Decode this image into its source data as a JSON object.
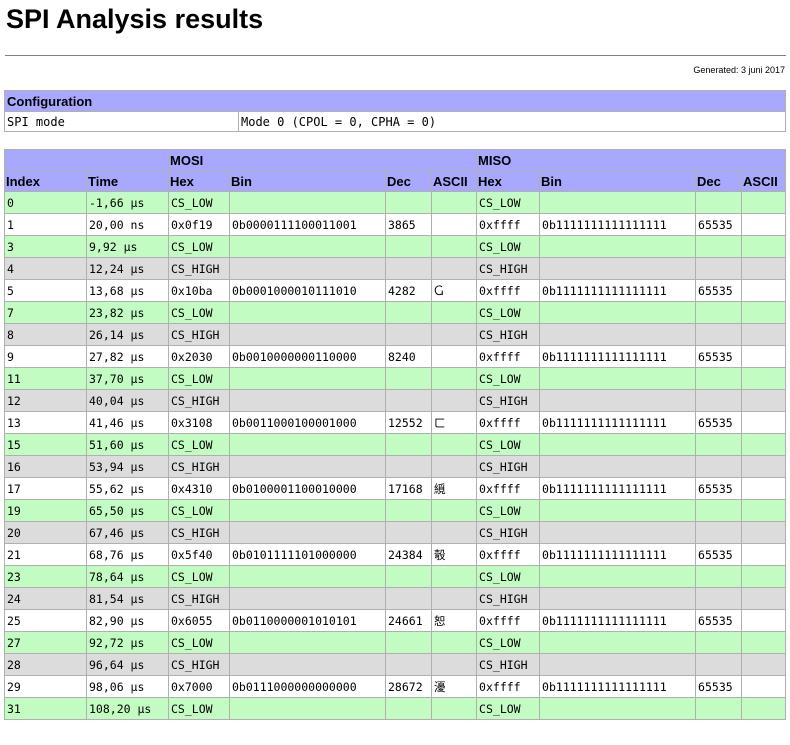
{
  "page": {
    "title": "SPI Analysis results",
    "generated": "Generated: 3 juni 2017"
  },
  "configuration": {
    "header": "Configuration",
    "rows": [
      {
        "label": "SPI mode",
        "value": "Mode 0 (CPOL = 0, CPHA = 0)"
      }
    ]
  },
  "results": {
    "group_headers": {
      "mosi": "MOSI",
      "miso": "MISO"
    },
    "columns": [
      "Index",
      "Time",
      "Hex",
      "Bin",
      "Dec",
      "ASCII",
      "Hex",
      "Bin",
      "Dec",
      "ASCII"
    ],
    "rows": [
      {
        "kind": "low",
        "index": "0",
        "time": "-1,66 µs",
        "mosi": {
          "hex": "CS_LOW",
          "bin": "",
          "dec": "",
          "ascii": ""
        },
        "miso": {
          "hex": "CS_LOW",
          "bin": "",
          "dec": "",
          "ascii": ""
        }
      },
      {
        "kind": "xfer",
        "index": "1",
        "time": "20,00 ns",
        "mosi": {
          "hex": "0x0f19",
          "bin": "0b0000111100011001",
          "dec": "3865",
          "ascii": ""
        },
        "miso": {
          "hex": "0xffff",
          "bin": "0b1111111111111111",
          "dec": "65535",
          "ascii": ""
        }
      },
      {
        "kind": "low",
        "index": "3",
        "time": "9,92 µs",
        "mosi": {
          "hex": "CS_LOW",
          "bin": "",
          "dec": "",
          "ascii": ""
        },
        "miso": {
          "hex": "CS_LOW",
          "bin": "",
          "dec": "",
          "ascii": ""
        }
      },
      {
        "kind": "high",
        "index": "4",
        "time": "12,24 µs",
        "mosi": {
          "hex": "CS_HIGH",
          "bin": "",
          "dec": "",
          "ascii": ""
        },
        "miso": {
          "hex": "CS_HIGH",
          "bin": "",
          "dec": "",
          "ascii": ""
        }
      },
      {
        "kind": "xfer",
        "index": "5",
        "time": "13,68 µs",
        "mosi": {
          "hex": "0x10ba",
          "bin": "0b0001000010111010",
          "dec": "4282",
          "ascii": "Ⴚ"
        },
        "miso": {
          "hex": "0xffff",
          "bin": "0b1111111111111111",
          "dec": "65535",
          "ascii": ""
        }
      },
      {
        "kind": "low",
        "index": "7",
        "time": "23,82 µs",
        "mosi": {
          "hex": "CS_LOW",
          "bin": "",
          "dec": "",
          "ascii": ""
        },
        "miso": {
          "hex": "CS_LOW",
          "bin": "",
          "dec": "",
          "ascii": ""
        }
      },
      {
        "kind": "high",
        "index": "8",
        "time": "26,14 µs",
        "mosi": {
          "hex": "CS_HIGH",
          "bin": "",
          "dec": "",
          "ascii": ""
        },
        "miso": {
          "hex": "CS_HIGH",
          "bin": "",
          "dec": "",
          "ascii": ""
        }
      },
      {
        "kind": "xfer",
        "index": "9",
        "time": "27,82 µs",
        "mosi": {
          "hex": "0x2030",
          "bin": "0b0010000000110000",
          "dec": "8240",
          "ascii": ""
        },
        "miso": {
          "hex": "0xffff",
          "bin": "0b1111111111111111",
          "dec": "65535",
          "ascii": ""
        }
      },
      {
        "kind": "low",
        "index": "11",
        "time": "37,70 µs",
        "mosi": {
          "hex": "CS_LOW",
          "bin": "",
          "dec": "",
          "ascii": ""
        },
        "miso": {
          "hex": "CS_LOW",
          "bin": "",
          "dec": "",
          "ascii": ""
        }
      },
      {
        "kind": "high",
        "index": "12",
        "time": "40,04 µs",
        "mosi": {
          "hex": "CS_HIGH",
          "bin": "",
          "dec": "",
          "ascii": ""
        },
        "miso": {
          "hex": "CS_HIGH",
          "bin": "",
          "dec": "",
          "ascii": ""
        }
      },
      {
        "kind": "xfer",
        "index": "13",
        "time": "41,46 µs",
        "mosi": {
          "hex": "0x3108",
          "bin": "0b0011000100001000",
          "dec": "12552",
          "ascii": "ㄈ"
        },
        "miso": {
          "hex": "0xffff",
          "bin": "0b1111111111111111",
          "dec": "65535",
          "ascii": ""
        }
      },
      {
        "kind": "low",
        "index": "15",
        "time": "51,60 µs",
        "mosi": {
          "hex": "CS_LOW",
          "bin": "",
          "dec": "",
          "ascii": ""
        },
        "miso": {
          "hex": "CS_LOW",
          "bin": "",
          "dec": "",
          "ascii": ""
        }
      },
      {
        "kind": "high",
        "index": "16",
        "time": "53,94 µs",
        "mosi": {
          "hex": "CS_HIGH",
          "bin": "",
          "dec": "",
          "ascii": ""
        },
        "miso": {
          "hex": "CS_HIGH",
          "bin": "",
          "dec": "",
          "ascii": ""
        }
      },
      {
        "kind": "xfer",
        "index": "17",
        "time": "55,62 µs",
        "mosi": {
          "hex": "0x4310",
          "bin": "0b0100001100010000",
          "dec": "17168",
          "ascii": "䌐"
        },
        "miso": {
          "hex": "0xffff",
          "bin": "0b1111111111111111",
          "dec": "65535",
          "ascii": ""
        }
      },
      {
        "kind": "low",
        "index": "19",
        "time": "65,50 µs",
        "mosi": {
          "hex": "CS_LOW",
          "bin": "",
          "dec": "",
          "ascii": ""
        },
        "miso": {
          "hex": "CS_LOW",
          "bin": "",
          "dec": "",
          "ascii": ""
        }
      },
      {
        "kind": "high",
        "index": "20",
        "time": "67,46 µs",
        "mosi": {
          "hex": "CS_HIGH",
          "bin": "",
          "dec": "",
          "ascii": ""
        },
        "miso": {
          "hex": "CS_HIGH",
          "bin": "",
          "dec": "",
          "ascii": ""
        }
      },
      {
        "kind": "xfer",
        "index": "21",
        "time": "68,76 µs",
        "mosi": {
          "hex": "0x5f40",
          "bin": "0b0101111101000000",
          "dec": "24384",
          "ascii": "彀"
        },
        "miso": {
          "hex": "0xffff",
          "bin": "0b1111111111111111",
          "dec": "65535",
          "ascii": ""
        }
      },
      {
        "kind": "low",
        "index": "23",
        "time": "78,64 µs",
        "mosi": {
          "hex": "CS_LOW",
          "bin": "",
          "dec": "",
          "ascii": ""
        },
        "miso": {
          "hex": "CS_LOW",
          "bin": "",
          "dec": "",
          "ascii": ""
        }
      },
      {
        "kind": "high",
        "index": "24",
        "time": "81,54 µs",
        "mosi": {
          "hex": "CS_HIGH",
          "bin": "",
          "dec": "",
          "ascii": ""
        },
        "miso": {
          "hex": "CS_HIGH",
          "bin": "",
          "dec": "",
          "ascii": ""
        }
      },
      {
        "kind": "xfer",
        "index": "25",
        "time": "82,90 µs",
        "mosi": {
          "hex": "0x6055",
          "bin": "0b0110000001010101",
          "dec": "24661",
          "ascii": "恕"
        },
        "miso": {
          "hex": "0xffff",
          "bin": "0b1111111111111111",
          "dec": "65535",
          "ascii": ""
        }
      },
      {
        "kind": "low",
        "index": "27",
        "time": "92,72 µs",
        "mosi": {
          "hex": "CS_LOW",
          "bin": "",
          "dec": "",
          "ascii": ""
        },
        "miso": {
          "hex": "CS_LOW",
          "bin": "",
          "dec": "",
          "ascii": ""
        }
      },
      {
        "kind": "high",
        "index": "28",
        "time": "96,64 µs",
        "mosi": {
          "hex": "CS_HIGH",
          "bin": "",
          "dec": "",
          "ascii": ""
        },
        "miso": {
          "hex": "CS_HIGH",
          "bin": "",
          "dec": "",
          "ascii": ""
        }
      },
      {
        "kind": "xfer",
        "index": "29",
        "time": "98,06 µs",
        "mosi": {
          "hex": "0x7000",
          "bin": "0b0111000000000000",
          "dec": "28672",
          "ascii": "瀀"
        },
        "miso": {
          "hex": "0xffff",
          "bin": "0b1111111111111111",
          "dec": "65535",
          "ascii": ""
        }
      },
      {
        "kind": "low",
        "index": "31",
        "time": "108,20 µs",
        "mosi": {
          "hex": "CS_LOW",
          "bin": "",
          "dec": "",
          "ascii": ""
        },
        "miso": {
          "hex": "CS_LOW",
          "bin": "",
          "dec": "",
          "ascii": ""
        }
      }
    ]
  },
  "colors": {
    "header_background": "#a8a8ff",
    "cs_low_row": "#c2fcc2",
    "cs_high_row": "#dcdcdc",
    "transfer_row": "#ffffff"
  }
}
